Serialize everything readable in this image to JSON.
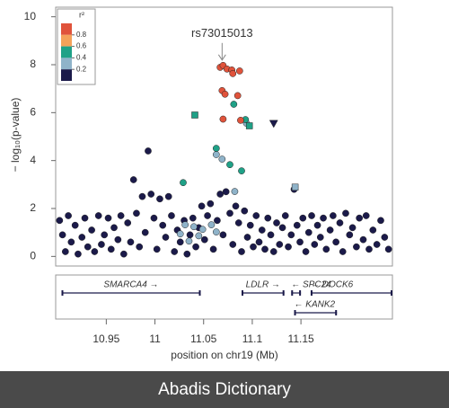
{
  "chart_data": {
    "type": "scatter",
    "ylabel": "− log₁₀(p-value)",
    "xlabel": "position on chr19 (Mb)",
    "xlim": [
      10.898,
      11.244
    ],
    "xticks": [
      10.95,
      11,
      11.05,
      11.1,
      11.15
    ],
    "ylim": [
      -0.4,
      10.4
    ],
    "yticks": [
      0,
      2,
      4,
      6,
      8,
      10
    ],
    "annotation": {
      "text": "rs73015013",
      "x": 11.069,
      "y": 7.97
    },
    "legend": {
      "title": "r²",
      "colors": [
        "#e0533b",
        "#f4a25a",
        "#1fa187",
        "#8fb3c9",
        "#1b1a4a"
      ],
      "ticks": [
        0.2,
        0.4,
        0.6,
        0.8
      ]
    },
    "series": [
      {
        "color": "#1b1a4a",
        "marker": "circle",
        "x": [
          10.902,
          10.905,
          10.908,
          10.911,
          10.914,
          10.918,
          10.921,
          10.925,
          10.928,
          10.931,
          10.935,
          10.938,
          10.942,
          10.945,
          10.948,
          10.952,
          10.955,
          10.958,
          10.962,
          10.965,
          10.968,
          10.972,
          10.975,
          10.978,
          10.981,
          10.984,
          10.987,
          10.99,
          10.993,
          10.996,
          10.999,
          11.002,
          11.005,
          11.008,
          11.011,
          11.014,
          11.017,
          11.02,
          11.023,
          11.026,
          11.03,
          11.033,
          11.036,
          11.039,
          11.042,
          11.045,
          11.048,
          11.051,
          11.054,
          11.057,
          11.06,
          11.064,
          11.067,
          11.07,
          11.073,
          11.077,
          11.08,
          11.083,
          11.086,
          11.089,
          11.092,
          11.095,
          11.098,
          11.101,
          11.104,
          11.107,
          11.11,
          11.113,
          11.116,
          11.119,
          11.122,
          11.125,
          11.128,
          11.131,
          11.134,
          11.137,
          11.14,
          11.143,
          11.146,
          11.149,
          11.152,
          11.155,
          11.158,
          11.161,
          11.164,
          11.167,
          11.17,
          11.173,
          11.176,
          11.18,
          11.183,
          11.186,
          11.19,
          11.193,
          11.196,
          11.2,
          11.203,
          11.207,
          11.21,
          11.214,
          11.217,
          11.22,
          11.224,
          11.228,
          11.232,
          11.236,
          11.24
        ],
        "values": [
          1.5,
          0.9,
          0.2,
          1.7,
          0.6,
          1.3,
          0.1,
          0.8,
          1.6,
          0.4,
          1.1,
          0.2,
          1.7,
          0.5,
          0.9,
          1.6,
          0.3,
          1.2,
          0.7,
          1.7,
          0.1,
          1.4,
          0.6,
          3.2,
          1.8,
          0.4,
          2.5,
          1.0,
          4.4,
          2.6,
          1.6,
          0.3,
          2.4,
          1.3,
          0.8,
          2.5,
          1.7,
          0.2,
          1.1,
          0.6,
          1.5,
          0.1,
          0.9,
          1.6,
          0.4,
          1.2,
          2.1,
          0.7,
          1.7,
          2.2,
          0.3,
          1.5,
          2.6,
          0.9,
          2.7,
          1.8,
          0.5,
          2.1,
          1.4,
          0.2,
          1.9,
          0.8,
          1.3,
          0.4,
          1.7,
          0.6,
          1.1,
          0.3,
          1.6,
          0.9,
          0.2,
          1.4,
          0.5,
          1.2,
          1.7,
          0.4,
          0.9,
          2.8,
          1.3,
          0.6,
          1.6,
          0.2,
          1.0,
          1.7,
          0.5,
          1.3,
          0.8,
          1.6,
          0.3,
          1.1,
          1.7,
          0.6,
          1.4,
          0.2,
          1.8,
          0.9,
          1.2,
          0.4,
          1.6,
          0.7,
          1.7,
          0.3,
          1.1,
          0.5,
          1.5,
          0.8,
          0.3
        ]
      },
      {
        "color": "#8fb3c9",
        "marker": "circle",
        "x": [
          11.063,
          11.069,
          11.094,
          11.082,
          11.031,
          11.04,
          11.049,
          11.058,
          11.026,
          11.045,
          11.063,
          11.035
        ],
        "values": [
          4.25,
          4.06,
          5.56,
          2.71,
          1.32,
          1.24,
          1.13,
          1.32,
          0.94,
          0.86,
          1.02,
          0.64
        ]
      },
      {
        "color": "#8fb3c9",
        "marker": "square",
        "x": [
          11.144
        ],
        "values": [
          2.89
        ]
      },
      {
        "color": "#1fa187",
        "marker": "circle",
        "x": [
          11.081,
          11.093,
          11.063,
          11.077,
          11.089,
          11.029
        ],
        "values": [
          6.35,
          5.71,
          4.51,
          3.83,
          3.57,
          3.08
        ]
      },
      {
        "color": "#1fa187",
        "marker": "square",
        "x": [
          11.041,
          11.097
        ],
        "values": [
          5.9,
          5.45
        ]
      },
      {
        "color": "#e0533b",
        "marker": "circle",
        "x": [
          11.067,
          11.07,
          11.074,
          11.079,
          11.087,
          11.069,
          11.072,
          11.085,
          11.07,
          11.088,
          11.08
        ],
        "values": [
          7.89,
          7.97,
          7.82,
          7.78,
          7.74,
          6.92,
          6.77,
          6.71,
          5.73,
          5.68,
          7.63
        ]
      },
      {
        "color": "#1b1a4a",
        "marker": "triangle",
        "x": [
          11.122
        ],
        "values": [
          5.53
        ]
      }
    ],
    "genes": [
      {
        "label": "SMARCA4 →",
        "start": 10.904,
        "end": 11.047
      },
      {
        "label": "LDLR →",
        "start": 11.089,
        "end": 11.133
      },
      {
        "label": "← SPC24",
        "start": 11.14,
        "end": 11.15
      },
      {
        "label": "← DOCK6",
        "start": 11.16,
        "end": 11.244
      },
      {
        "label": "← KANK2",
        "start": 11.143,
        "end": 11.187
      }
    ]
  },
  "footer": "Abadis Dictionary"
}
